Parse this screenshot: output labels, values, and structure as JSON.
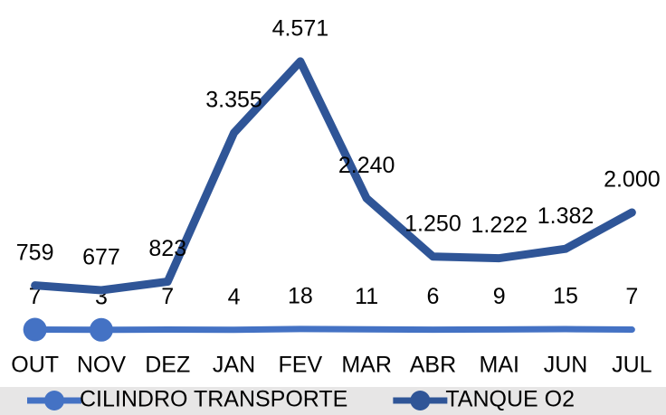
{
  "chart_data": {
    "type": "line",
    "categories": [
      "OUT",
      "NOV",
      "DEZ",
      "JAN",
      "FEV",
      "MAR",
      "ABR",
      "MAI",
      "JUN",
      "JUL"
    ],
    "series": [
      {
        "name": "CILINDRO TRANSPORTE",
        "color": "#4472c4",
        "values": [
          7,
          3,
          7,
          4,
          18,
          11,
          6,
          9,
          15,
          7
        ]
      },
      {
        "name": "TANQUE O2",
        "color": "#2f5597",
        "values": [
          759,
          677,
          823,
          3355,
          4571,
          2240,
          1250,
          1222,
          1382,
          2000
        ],
        "value_labels": [
          "759",
          "677",
          "823",
          "3.355",
          "4.571",
          "2.240",
          "1.250",
          "1.222",
          "1.382",
          "2.000"
        ]
      }
    ],
    "ylim": [
      0,
      5000
    ]
  }
}
